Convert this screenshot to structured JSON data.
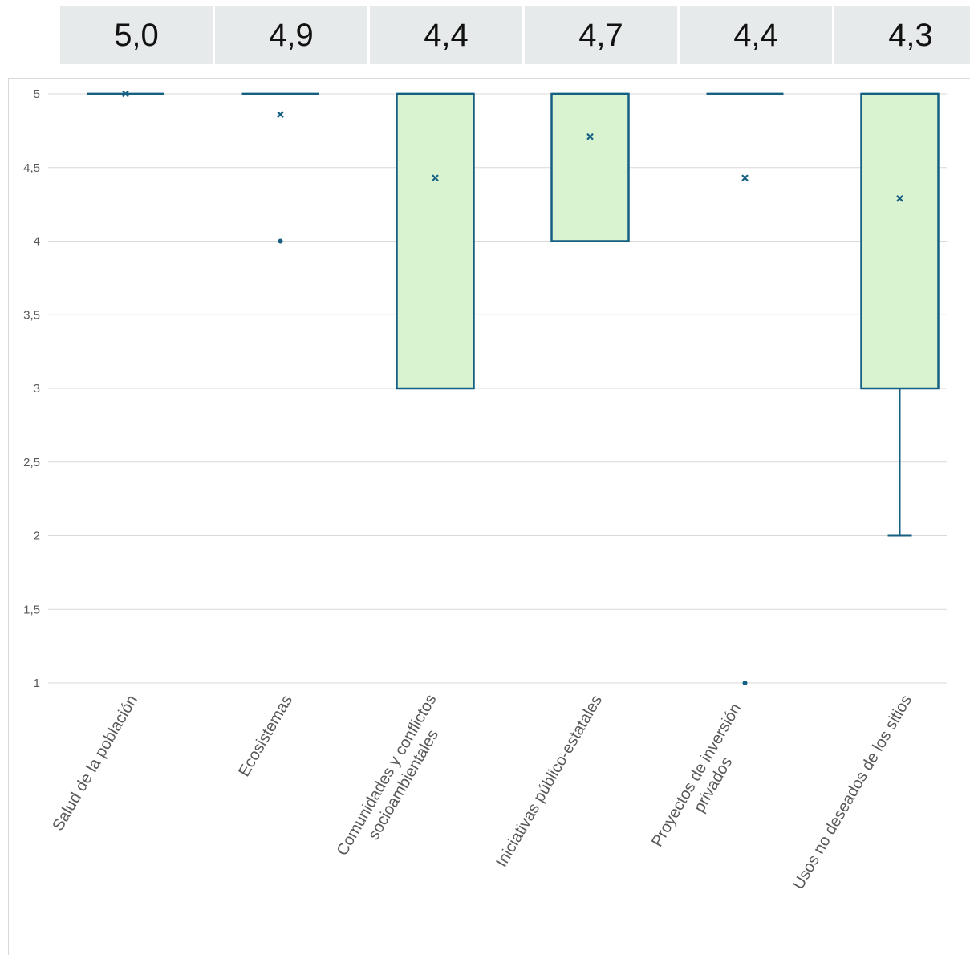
{
  "mean_row": {
    "values": [
      "5,0",
      "4,9",
      "4,4",
      "4,7",
      "4,4",
      "4,3"
    ]
  },
  "chart_data": {
    "type": "box",
    "title": "",
    "xlabel": "",
    "ylabel": "",
    "ylim": [
      1,
      5
    ],
    "y_ticks": [
      "1",
      "1,5",
      "2",
      "2,5",
      "3",
      "3,5",
      "4",
      "4,5",
      "5"
    ],
    "grid": true,
    "colors": {
      "box_fill": "#d9f2d0",
      "box_stroke": "#156082",
      "grid": "#d9d9d9",
      "axis_text": "#595959",
      "mean_cell_bg": "#e7eaea"
    },
    "categories": [
      "Salud de la población",
      "Ecosistemas",
      "Comunidades y conflictos socioambientales",
      "Iniciativas público-estatales",
      "Proyectos de inversión privados",
      "Usos no deseados de los sitios"
    ],
    "category_lines": [
      [
        "Salud de la población"
      ],
      [
        "Ecosistemas"
      ],
      [
        "Comunidades y conflictos",
        "socioambientales"
      ],
      [
        "Iniciativas público-estatales"
      ],
      [
        "Proyectos de inversión",
        "privados"
      ],
      [
        "Usos no deseados de los sitios"
      ]
    ],
    "boxes": [
      {
        "min": 5,
        "q1": 5,
        "median": 5,
        "q3": 5,
        "max": 5,
        "mean": 5.0,
        "outliers": []
      },
      {
        "min": 5,
        "q1": 5,
        "median": 5,
        "q3": 5,
        "max": 5,
        "mean": 4.86,
        "outliers": [
          4
        ]
      },
      {
        "min": 3,
        "q1": 3,
        "median": 5,
        "q3": 5,
        "max": 5,
        "mean": 4.43,
        "outliers": []
      },
      {
        "min": 4,
        "q1": 4,
        "median": 5,
        "q3": 5,
        "max": 5,
        "mean": 4.71,
        "outliers": []
      },
      {
        "min": 5,
        "q1": 5,
        "median": 5,
        "q3": 5,
        "max": 5,
        "mean": 4.43,
        "outliers": [
          1
        ]
      },
      {
        "min": 2,
        "q1": 3,
        "median": 5,
        "q3": 5,
        "max": 5,
        "mean": 4.29,
        "outliers": []
      }
    ]
  }
}
